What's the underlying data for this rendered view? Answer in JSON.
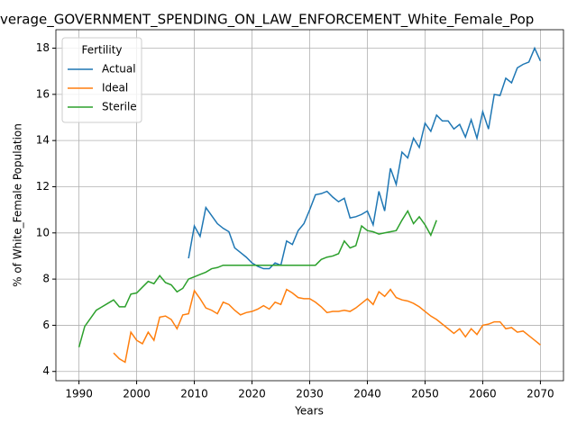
{
  "chart_data": {
    "type": "line",
    "title": "verage_GOVERNMENT_SPENDING_ON_LAW_ENFORCEMENT_White_Female_Pop",
    "xlabel": "Years",
    "ylabel": "% of White_Female Population",
    "legend_title": "Fertility",
    "legend": "upper left",
    "grid": true,
    "x": [
      1990,
      1991,
      1992,
      1993,
      1994,
      1995,
      1996,
      1997,
      1998,
      1999,
      2000,
      2001,
      2002,
      2003,
      2004,
      2005,
      2006,
      2007,
      2008,
      2009,
      2010,
      2011,
      2012,
      2013,
      2014,
      2015,
      2016,
      2017,
      2018,
      2019,
      2020,
      2021,
      2022,
      2023,
      2024,
      2025,
      2026,
      2027,
      2028,
      2029,
      2030,
      2031,
      2032,
      2033,
      2034,
      2035,
      2036,
      2037,
      2038,
      2039,
      2040,
      2041,
      2042,
      2043,
      2044,
      2045,
      2046,
      2047,
      2048,
      2049,
      2050,
      2051,
      2052,
      2053,
      2054,
      2055,
      2056,
      2057,
      2058,
      2059,
      2060,
      2061,
      2062,
      2063,
      2064,
      2065,
      2066,
      2067,
      2068,
      2069,
      2070
    ],
    "series": [
      {
        "name": "Actual",
        "color": "#1f77b4",
        "values": [
          null,
          null,
          null,
          null,
          null,
          null,
          null,
          null,
          null,
          null,
          null,
          null,
          null,
          null,
          null,
          null,
          null,
          null,
          null,
          8.9,
          10.3,
          9.85,
          11.1,
          10.75,
          10.4,
          10.2,
          10.05,
          9.35,
          9.15,
          8.95,
          8.7,
          8.55,
          8.45,
          8.45,
          8.7,
          8.6,
          9.65,
          9.5,
          10.1,
          10.4,
          11.0,
          11.65,
          11.7,
          11.8,
          11.55,
          11.35,
          11.5,
          10.65,
          10.7,
          10.8,
          10.95,
          10.35,
          11.8,
          10.95,
          12.8,
          12.1,
          13.5,
          13.25,
          14.1,
          13.7,
          14.75,
          14.4,
          15.1,
          14.85,
          14.85,
          14.5,
          14.7,
          14.15,
          14.9,
          14.1,
          15.25,
          14.5,
          16.0,
          15.95,
          16.7,
          16.5,
          17.15,
          17.3,
          17.4,
          18.0,
          17.45
        ]
      },
      {
        "name": "Ideal",
        "color": "#ff7f0e",
        "values": [
          null,
          null,
          null,
          null,
          null,
          null,
          4.8,
          4.55,
          4.4,
          5.7,
          5.35,
          5.2,
          5.7,
          5.35,
          6.35,
          6.4,
          6.25,
          5.85,
          6.45,
          6.5,
          7.5,
          7.15,
          6.75,
          6.65,
          6.5,
          7.0,
          6.9,
          6.65,
          6.45,
          6.55,
          6.6,
          6.7,
          6.85,
          6.7,
          7.0,
          6.9,
          7.55,
          7.4,
          7.2,
          7.15,
          7.15,
          7.0,
          6.8,
          6.55,
          6.6,
          6.6,
          6.65,
          6.6,
          6.75,
          6.95,
          7.15,
          6.9,
          7.45,
          7.25,
          7.55,
          7.2,
          7.1,
          7.05,
          6.95,
          6.8,
          6.6,
          6.4,
          6.25,
          6.05,
          5.85,
          5.65,
          5.85,
          5.5,
          5.85,
          5.6,
          6.0,
          6.05,
          6.15,
          6.15,
          5.85,
          5.9,
          5.7,
          5.75,
          5.55,
          5.35,
          5.15
        ]
      },
      {
        "name": "Sterile",
        "color": "#2ca02c",
        "values": [
          5.05,
          5.95,
          6.3,
          6.65,
          6.8,
          6.95,
          7.1,
          6.8,
          6.8,
          7.35,
          7.4,
          7.65,
          7.9,
          7.8,
          8.15,
          7.85,
          7.75,
          7.45,
          7.6,
          8.0,
          8.1,
          8.2,
          8.3,
          8.45,
          8.5,
          8.6,
          8.6,
          8.6,
          8.6,
          8.6,
          8.6,
          8.6,
          8.6,
          8.6,
          8.6,
          8.6,
          8.6,
          8.6,
          8.6,
          8.6,
          8.6,
          8.6,
          8.85,
          8.95,
          9.0,
          9.1,
          9.65,
          9.35,
          9.45,
          10.3,
          10.1,
          10.05,
          9.95,
          10.0,
          10.05,
          10.1,
          10.55,
          10.95,
          10.4,
          10.7,
          10.35,
          9.9,
          10.55,
          null,
          null,
          null,
          null,
          null,
          null,
          null,
          null,
          null,
          null,
          null,
          null,
          null,
          null,
          null,
          null,
          null,
          null
        ]
      }
    ],
    "xlim": [
      1986,
      2074
    ],
    "xticks": [
      1990,
      2000,
      2010,
      2020,
      2030,
      2040,
      2050,
      2060,
      2070
    ],
    "ylim": [
      3.6,
      18.8
    ],
    "yticks": [
      4,
      6,
      8,
      10,
      12,
      14,
      16,
      18
    ]
  }
}
